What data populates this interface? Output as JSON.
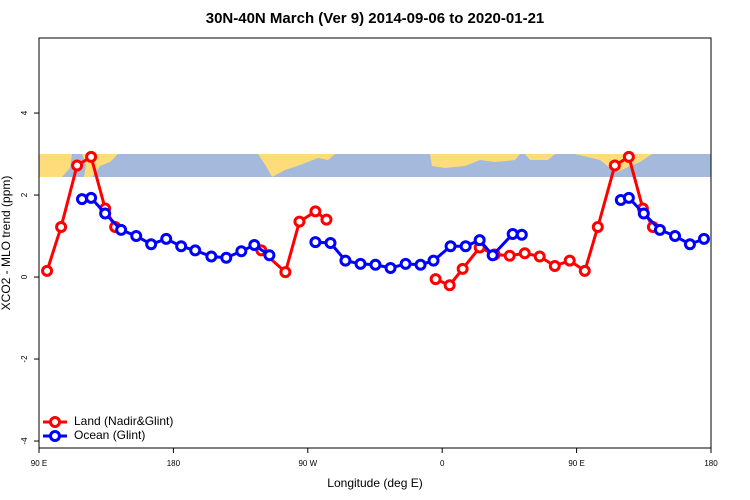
{
  "chart_data": {
    "type": "line",
    "title": "30N-40N March (Ver 9)   2014-09-06 to 2020-01-21",
    "x_label": "Longitude (deg E)",
    "y_label": "XCO2 - MLO trend (ppm)",
    "xlim": [
      90,
      540
    ],
    "ylim": [
      -4.17,
      5.83
    ],
    "xticks": [
      {
        "value": 90,
        "label": "90 E"
      },
      180,
      {
        "value": 270,
        "label": "90 W"
      },
      {
        "value": 360,
        "label": "0"
      },
      {
        "value": 450,
        "label": "90 E"
      },
      {
        "value": 540,
        "label": "180"
      }
    ],
    "yticks": [
      -4,
      -2,
      0,
      2,
      4
    ],
    "legend": "bottom-left",
    "series": [
      {
        "name": "Land (Nadir&Glint)",
        "color": "#ff0000",
        "x": [
          95.4,
          104.8,
          115.5,
          124.9,
          134.3,
          141,
          null,
          238.9,
          255,
          264.4,
          275.1,
          282.5,
          null,
          355.6,
          365,
          373.7,
          385.1,
          395.1,
          405.2,
          415.3,
          425.3,
          435.4,
          445.4,
          455.5,
          464.2,
          475.6,
          485,
          494.4,
          501.1
        ],
        "values": [
          0.15,
          1.22,
          2.72,
          2.93,
          1.67,
          1.22,
          null,
          0.65,
          0.12,
          1.35,
          1.6,
          1.4,
          null,
          -0.05,
          -0.2,
          0.2,
          0.72,
          0.55,
          0.52,
          0.58,
          0.5,
          0.27,
          0.4,
          0.15,
          1.22,
          2.72,
          2.93,
          1.67,
          1.22
        ]
      },
      {
        "name": "Ocean (Glint)",
        "color": "#0000ff",
        "x": [
          118.8,
          124.9,
          134.3,
          145,
          155.1,
          165.1,
          175.2,
          185.2,
          194.6,
          205.4,
          215.4,
          225.5,
          234.2,
          244.3,
          null,
          275.1,
          285.2,
          295.2,
          305.3,
          315.3,
          325.4,
          335.5,
          345.5,
          354.2,
          365.6,
          375.7,
          385.1,
          393.8,
          407.2,
          413.3,
          null,
          479.6,
          485,
          495,
          505.8,
          515.9,
          525.9,
          535.3
        ],
        "values": [
          1.9,
          1.93,
          1.55,
          1.15,
          1.0,
          0.8,
          0.93,
          0.75,
          0.65,
          0.5,
          0.47,
          0.63,
          0.78,
          0.53,
          null,
          0.85,
          0.83,
          0.4,
          0.32,
          0.3,
          0.22,
          0.32,
          0.3,
          0.4,
          0.75,
          0.75,
          0.9,
          0.53,
          1.05,
          1.03,
          null,
          1.88,
          1.93,
          1.55,
          1.15,
          1.0,
          0.8,
          0.93
        ]
      }
    ]
  }
}
